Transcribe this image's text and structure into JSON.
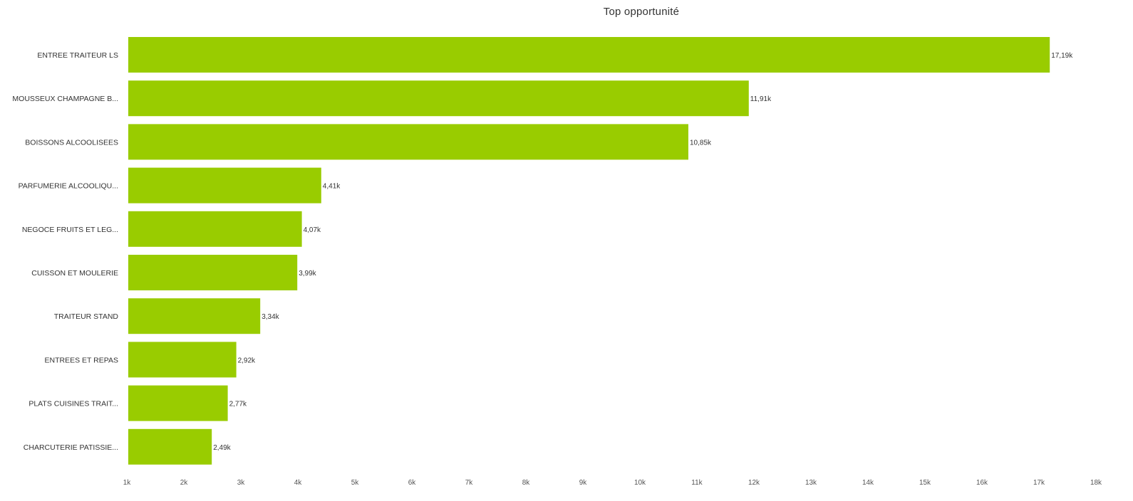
{
  "chart_data": {
    "type": "bar",
    "orientation": "horizontal",
    "title": "Top opportunité",
    "xlabel": "",
    "ylabel": "",
    "categories": [
      "ENTREE TRAITEUR LS",
      "MOUSSEUX CHAMPAGNE B...",
      "BOISSONS ALCOOLISEES",
      "PARFUMERIE ALCOOLIQU...",
      "NEGOCE FRUITS ET LEG...",
      "CUISSON ET MOULERIE",
      "TRAITEUR STAND",
      "ENTREES ET REPAS",
      "PLATS CUISINES TRAIT...",
      "CHARCUTERIE PATISSIE..."
    ],
    "values": [
      17190,
      11910,
      10850,
      4410,
      4070,
      3990,
      3340,
      2920,
      2770,
      2490
    ],
    "value_labels": [
      "17,19k",
      "11,91k",
      "10,85k",
      "4,41k",
      "4,07k",
      "3,99k",
      "3,34k",
      "2,92k",
      "2,77k",
      "2,49k"
    ],
    "xlim": [
      1000,
      18000
    ],
    "x_ticks": [
      1000,
      2000,
      3000,
      4000,
      5000,
      6000,
      7000,
      8000,
      9000,
      10000,
      11000,
      12000,
      13000,
      14000,
      15000,
      16000,
      17000,
      18000
    ],
    "x_tick_labels": [
      "1k",
      "2k",
      "3k",
      "4k",
      "5k",
      "6k",
      "7k",
      "8k",
      "9k",
      "10k",
      "11k",
      "12k",
      "13k",
      "14k",
      "15k",
      "16k",
      "17k",
      "18k"
    ],
    "bar_color": "#99cc00",
    "grid": false,
    "legend": "none"
  }
}
